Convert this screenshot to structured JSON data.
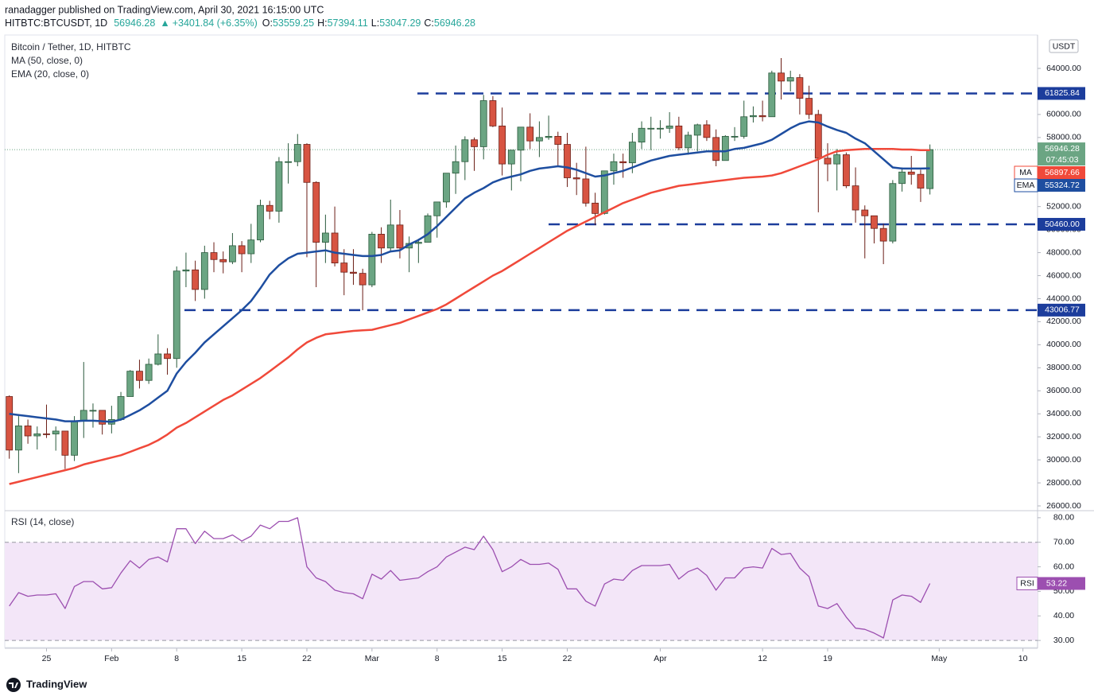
{
  "header": {
    "publisher": "ranadagger published on TradingView.com, April 30, 2021 16:15:00 UTC",
    "symbol": "HITBTC:BTCUSDT, 1D",
    "change": "+3401.84 (+6.35%)",
    "ohlc_prefixes": [
      "O:",
      "H:",
      "L:",
      "C:"
    ],
    "currency": "USDT",
    "brand": "TradingView"
  },
  "chart_data": [
    {
      "type": "candlestick",
      "title": "Bitcoin / Tether, 1D, HITBTC",
      "up_color": "#6ba583",
      "down_color": "#d75442",
      "x": [
        "01-21",
        "01-22",
        "01-23",
        "01-24",
        "01-25",
        "01-26",
        "01-27",
        "01-28",
        "01-29",
        "01-30",
        "01-31",
        "02-01",
        "02-02",
        "02-03",
        "02-04",
        "02-05",
        "02-06",
        "02-07",
        "02-08",
        "02-09",
        "02-10",
        "02-11",
        "02-12",
        "02-13",
        "02-14",
        "02-15",
        "02-16",
        "02-17",
        "02-18",
        "02-19",
        "02-20",
        "02-21",
        "02-22",
        "02-23",
        "02-24",
        "02-25",
        "02-26",
        "02-27",
        "02-28",
        "03-01",
        "03-02",
        "03-03",
        "03-04",
        "03-05",
        "03-06",
        "03-07",
        "03-08",
        "03-09",
        "03-10",
        "03-11",
        "03-12",
        "03-13",
        "03-14",
        "03-15",
        "03-16",
        "03-17",
        "03-18",
        "03-19",
        "03-20",
        "03-21",
        "03-22",
        "03-23",
        "03-24",
        "03-25",
        "03-26",
        "03-27",
        "03-28",
        "03-29",
        "03-30",
        "03-31",
        "04-01",
        "04-02",
        "04-03",
        "04-04",
        "04-05",
        "04-06",
        "04-07",
        "04-08",
        "04-09",
        "04-10",
        "04-11",
        "04-12",
        "04-13",
        "04-14",
        "04-15",
        "04-16",
        "04-17",
        "04-18",
        "04-19",
        "04-20",
        "04-21",
        "04-22",
        "04-23",
        "04-24",
        "04-25",
        "04-26",
        "04-27",
        "04-28",
        "04-29",
        "04-30"
      ],
      "open": [
        35500,
        30850,
        32950,
        32080,
        32260,
        32250,
        32500,
        30400,
        33400,
        34300,
        34300,
        33100,
        33500,
        35500,
        37700,
        36900,
        38300,
        39200,
        38800,
        46400,
        46500,
        44800,
        48000,
        47400,
        47200,
        48600,
        47900,
        49100,
        52100,
        51600,
        55900,
        55900,
        57400,
        54100,
        48900,
        49700,
        47100,
        46300,
        46200,
        45200,
        49600,
        48400,
        50400,
        48400,
        48800,
        48900,
        51200,
        52400,
        54900,
        55900,
        57800,
        57200,
        61200,
        59000,
        55700,
        56900,
        58900,
        57700,
        58000,
        58100,
        57400,
        54500,
        54400,
        52300,
        51400,
        55100,
        55900,
        55800,
        57600,
        58800,
        58800,
        58800,
        59000,
        57100,
        58200,
        59100,
        58000,
        56000,
        58100,
        58100,
        59800,
        59900,
        59800,
        63600,
        62900,
        63200,
        61400,
        60000,
        56200,
        55700,
        56500,
        53800,
        51700,
        51200,
        50100,
        49000,
        54000,
        55000,
        54800,
        53559.25
      ],
      "high": [
        35600,
        33800,
        33500,
        32900,
        34800,
        32900,
        32500,
        33800,
        38500,
        34900,
        34300,
        34700,
        35900,
        37800,
        38700,
        38800,
        40900,
        39700,
        46800,
        48000,
        47300,
        48600,
        48900,
        48100,
        49700,
        49000,
        50500,
        52600,
        52500,
        56300,
        57500,
        58300,
        57500,
        54200,
        51300,
        52000,
        48300,
        48300,
        46600,
        49800,
        50200,
        52600,
        51700,
        49400,
        49200,
        51400,
        52400,
        54900,
        57300,
        58100,
        58000,
        61700,
        61600,
        60600,
        56900,
        58900,
        60100,
        59400,
        59900,
        58500,
        58400,
        55800,
        57200,
        53200,
        55100,
        56600,
        56600,
        58400,
        59400,
        59800,
        59500,
        60200,
        59800,
        58500,
        59200,
        59500,
        58700,
        58200,
        58900,
        61200,
        60700,
        61200,
        63800,
        64900,
        63800,
        63500,
        62500,
        60400,
        57500,
        57000,
        56700,
        55400,
        52100,
        51200,
        50500,
        54300,
        55400,
        56400,
        55200,
        57394.11
      ],
      "low": [
        30100,
        28850,
        31400,
        30900,
        31900,
        30800,
        29200,
        29900,
        31900,
        32800,
        32200,
        32300,
        33400,
        35500,
        36200,
        36600,
        38200,
        37400,
        38000,
        45000,
        43800,
        44000,
        46300,
        46200,
        47000,
        46300,
        47100,
        48900,
        50900,
        50600,
        54000,
        55500,
        47600,
        45000,
        47100,
        46800,
        44300,
        45200,
        43000,
        45000,
        47100,
        48100,
        47500,
        46300,
        47100,
        48900,
        49300,
        51900,
        53100,
        54300,
        55100,
        56100,
        58900,
        54700,
        53400,
        54200,
        57000,
        56300,
        57800,
        55500,
        53700,
        53000,
        52000,
        50400,
        51300,
        53900,
        54500,
        54900,
        57000,
        56900,
        57900,
        58400,
        56900,
        56500,
        56800,
        57700,
        55500,
        56000,
        57700,
        57900,
        59300,
        59400,
        59800,
        61300,
        62000,
        60000,
        59600,
        51500,
        54200,
        53400,
        53600,
        50600,
        47500,
        48800,
        47000,
        48800,
        53300,
        53900,
        52400,
        53047.29
      ],
      "close": [
        30850,
        32950,
        32080,
        32260,
        32250,
        32500,
        30400,
        33400,
        34300,
        34300,
        33100,
        33500,
        35500,
        37700,
        36900,
        38300,
        39200,
        38800,
        46400,
        46500,
        44800,
        48000,
        47400,
        47200,
        48600,
        47900,
        49100,
        52100,
        51600,
        55900,
        55900,
        57400,
        54100,
        48900,
        49700,
        47100,
        46300,
        46200,
        45200,
        49600,
        48400,
        50400,
        48400,
        48800,
        48900,
        51200,
        52400,
        54900,
        55900,
        57800,
        57200,
        61200,
        59000,
        55700,
        56900,
        58900,
        57700,
        58000,
        58100,
        57400,
        54500,
        54400,
        52300,
        51400,
        55100,
        55900,
        55800,
        57600,
        58800,
        58800,
        58800,
        59000,
        57100,
        58200,
        59100,
        58000,
        56000,
        58100,
        58100,
        59800,
        59900,
        59800,
        63600,
        62900,
        63200,
        61400,
        60000,
        56200,
        55700,
        56500,
        53800,
        51700,
        51200,
        50100,
        49000,
        54000,
        55000,
        54800,
        53600,
        56946.28
      ],
      "series": [
        {
          "name": "MA (50, close, 0)",
          "tag": "MA",
          "color": "#f0493a",
          "values": [
            27900,
            28100,
            28300,
            28500,
            28700,
            28900,
            29100,
            29300,
            29600,
            29800,
            30000,
            30200,
            30400,
            30700,
            31000,
            31300,
            31700,
            32200,
            32800,
            33200,
            33700,
            34200,
            34700,
            35200,
            35600,
            36100,
            36600,
            37100,
            37700,
            38300,
            38900,
            39600,
            40200,
            40600,
            40900,
            41000,
            41100,
            41200,
            41250,
            41300,
            41500,
            41700,
            41900,
            42200,
            42500,
            42800,
            43100,
            43500,
            44000,
            44500,
            45000,
            45500,
            46000,
            46400,
            46900,
            47400,
            47900,
            48400,
            48900,
            49400,
            49900,
            50300,
            50700,
            51100,
            51500,
            51900,
            52300,
            52600,
            52900,
            53200,
            53400,
            53600,
            53800,
            53900,
            54000,
            54100,
            54200,
            54300,
            54400,
            54500,
            54550,
            54600,
            54700,
            54900,
            55200,
            55500,
            55800,
            56100,
            56500,
            56800,
            56900,
            56950,
            57000,
            57000,
            57000,
            57000,
            56950,
            56950,
            56900,
            56897.66
          ]
        },
        {
          "name": "EMA (20, close, 0)",
          "tag": "EMA",
          "color": "#1e4ea0",
          "values": [
            34000,
            33900,
            33800,
            33700,
            33600,
            33500,
            33350,
            33350,
            33400,
            33400,
            33350,
            33300,
            33500,
            33900,
            34300,
            34800,
            35400,
            36000,
            37500,
            38500,
            39300,
            40200,
            40900,
            41600,
            42300,
            43000,
            43800,
            44900,
            46100,
            46900,
            47500,
            47900,
            48000,
            48100,
            48200,
            48000,
            47900,
            47800,
            47700,
            47700,
            47800,
            48100,
            48200,
            48700,
            49100,
            49600,
            50300,
            51100,
            51900,
            52700,
            53200,
            53600,
            54100,
            54400,
            54600,
            54800,
            55100,
            55300,
            55400,
            55500,
            55400,
            55200,
            54900,
            54600,
            54700,
            54900,
            55100,
            55400,
            55700,
            56000,
            56200,
            56400,
            56500,
            56600,
            56700,
            56800,
            56800,
            56800,
            57000,
            57100,
            57300,
            57500,
            57800,
            58300,
            58800,
            59200,
            59400,
            59300,
            58950,
            58650,
            58400,
            57900,
            57500,
            56800,
            56100,
            55400,
            55300,
            55300,
            55300,
            55324.72
          ]
        }
      ],
      "countdown": "07:45:03",
      "levels": [
        61825.84,
        {
          "value": 50460,
          "label": "50460.00"
        },
        43006.77
      ],
      "level_color": "#1c3d9c",
      "xlim": [
        "01-20",
        "05-12"
      ],
      "xticks": [
        {
          "value": "01-25",
          "label": "25"
        },
        {
          "value": "02-01",
          "label": "Feb"
        },
        {
          "value": "02-08",
          "label": "8"
        },
        {
          "value": "02-15",
          "label": "15"
        },
        {
          "value": "02-22",
          "label": "22"
        },
        {
          "value": "03-01",
          "label": "Mar"
        },
        {
          "value": "03-08",
          "label": "8"
        },
        {
          "value": "03-15",
          "label": "15"
        },
        {
          "value": "03-22",
          "label": "22"
        },
        {
          "value": "04-01",
          "label": "Apr"
        },
        {
          "value": "04-12",
          "label": "12"
        },
        {
          "value": "04-19",
          "label": "19"
        },
        {
          "value": "05-01",
          "label": "May"
        },
        {
          "value": "05-10",
          "label": "10"
        }
      ],
      "ylim": [
        25724,
        66832
      ],
      "yticks": [
        {
          "value": 26000,
          "label": "26000.00"
        },
        {
          "value": 28000,
          "label": "28000.00"
        },
        {
          "value": 30000,
          "label": "30000.00"
        },
        {
          "value": 32000,
          "label": "32000.00"
        },
        {
          "value": 34000,
          "label": "34000.00"
        },
        {
          "value": 36000,
          "label": "36000.00"
        },
        {
          "value": 38000,
          "label": "38000.00"
        },
        {
          "value": 40000,
          "label": "40000.00"
        },
        {
          "value": 42000,
          "label": "42000.00"
        },
        {
          "value": 44000,
          "label": "44000.00"
        },
        {
          "value": 46000,
          "label": "46000.00"
        },
        {
          "value": 48000,
          "label": "48000.00"
        },
        {
          "value": 50000,
          "label": "50000.00"
        },
        {
          "value": 52000,
          "label": "52000.00"
        },
        {
          "value": 54000,
          "label": "54000.00"
        },
        {
          "value": 56000,
          "label": "56000.00"
        },
        {
          "value": 58000,
          "label": "58000.00"
        },
        {
          "value": 60000,
          "label": "60000.00"
        },
        {
          "value": 62000,
          "label": "62000.00"
        },
        {
          "value": 64000,
          "label": "64000.00"
        }
      ],
      "grid": false
    },
    {
      "type": "line",
      "series": [
        {
          "name": "RSI (14, close)",
          "tag": "RSI",
          "color": "#9c4fb0",
          "values": [
            44,
            49.5,
            48,
            48.5,
            48.5,
            49,
            43,
            52,
            54,
            54,
            51,
            51.5,
            57.5,
            62.5,
            59.5,
            63,
            64,
            62,
            75.5,
            75.5,
            69.5,
            74.5,
            71.5,
            71.5,
            73,
            70.5,
            72.5,
            77,
            75.5,
            78.5,
            78.5,
            80,
            60,
            55.5,
            54,
            50.5,
            49.5,
            49,
            47,
            57,
            55,
            58.5,
            54.5,
            55,
            55.5,
            58,
            60,
            64,
            66,
            68,
            67,
            72.5,
            67,
            58,
            60,
            63,
            61,
            61,
            61.5,
            59,
            51,
            51,
            46,
            44,
            53,
            55,
            54.5,
            58.5,
            60.5,
            60.5,
            60.5,
            61,
            55,
            58,
            59.5,
            56.5,
            50.5,
            55.5,
            55.5,
            59.5,
            60,
            59.5,
            67.5,
            65,
            65.5,
            59.5,
            56,
            44,
            43,
            45,
            39.5,
            35,
            34.5,
            33,
            31,
            46.5,
            48.5,
            48,
            45.5,
            53.22
          ]
        }
      ],
      "band": [
        30,
        70
      ],
      "band_color": "#f3e6f8",
      "ylim": [
        26.8,
        81.9
      ],
      "yticks": [
        {
          "value": 30,
          "label": "30.00"
        },
        {
          "value": 40,
          "label": "40.00"
        },
        {
          "value": 50,
          "label": "50.00"
        },
        {
          "value": 60,
          "label": "60.00"
        },
        {
          "value": 70,
          "label": "70.00"
        },
        {
          "value": 80,
          "label": "80.00"
        }
      ],
      "grid": false
    }
  ]
}
